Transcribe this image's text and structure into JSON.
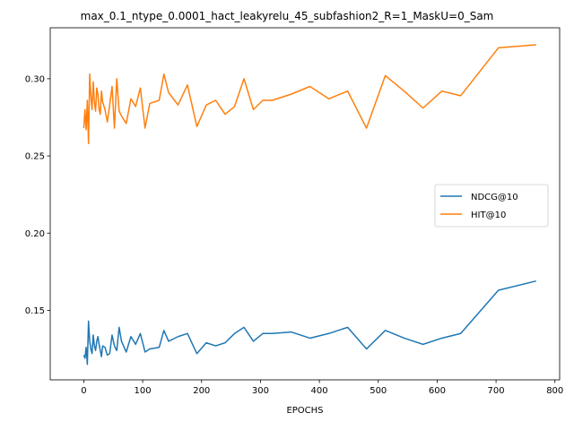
{
  "chart_data": {
    "type": "line",
    "title": "max_0.1_ntype_0.0001_hact_leakyrelu_45_subfashion2_R=1_MaskU=0_Sam",
    "xlabel": "EPOCHS",
    "ylabel": "",
    "xlim": [
      -57,
      808
    ],
    "ylim": [
      0.105,
      0.333
    ],
    "xticks": [
      0,
      100,
      200,
      300,
      400,
      500,
      600,
      700,
      800
    ],
    "yticks": [
      0.15,
      0.2,
      0.25,
      0.3
    ],
    "ytick_labels": [
      "0.15",
      "0.20",
      "0.25",
      "0.30"
    ],
    "grid": false,
    "legend_position": "center-right",
    "colors": {
      "NDCG@10": "#1f77b4",
      "HIT@10": "#ff7f0e"
    },
    "series": [
      {
        "name": "NDCG@10",
        "x": [
          0,
          2,
          4,
          6,
          8,
          10,
          12,
          14,
          16,
          18,
          20,
          22,
          24,
          26,
          28,
          30,
          32,
          36,
          40,
          44,
          48,
          52,
          56,
          60,
          64,
          72,
          80,
          88,
          96,
          104,
          112,
          128,
          136,
          144,
          160,
          176,
          192,
          208,
          224,
          240,
          256,
          272,
          288,
          304,
          320,
          352,
          384,
          416,
          448,
          480,
          512,
          544,
          576,
          608,
          640,
          704,
          768
        ],
        "y": [
          0.121,
          0.119,
          0.126,
          0.115,
          0.143,
          0.13,
          0.125,
          0.122,
          0.134,
          0.127,
          0.124,
          0.13,
          0.133,
          0.128,
          0.124,
          0.12,
          0.127,
          0.126,
          0.121,
          0.122,
          0.134,
          0.127,
          0.124,
          0.139,
          0.13,
          0.123,
          0.133,
          0.128,
          0.135,
          0.123,
          0.125,
          0.126,
          0.137,
          0.13,
          0.133,
          0.135,
          0.122,
          0.129,
          0.127,
          0.129,
          0.135,
          0.139,
          0.13,
          0.135,
          0.135,
          0.136,
          0.132,
          0.135,
          0.139,
          0.125,
          0.137,
          0.132,
          0.128,
          0.132,
          0.135,
          0.163,
          0.169
        ]
      },
      {
        "name": "HIT@10",
        "x": [
          0,
          2,
          4,
          6,
          8,
          10,
          12,
          14,
          16,
          18,
          20,
          22,
          24,
          26,
          28,
          30,
          32,
          36,
          40,
          44,
          48,
          52,
          56,
          60,
          64,
          72,
          80,
          88,
          96,
          104,
          112,
          128,
          136,
          144,
          160,
          176,
          192,
          208,
          224,
          240,
          256,
          272,
          288,
          304,
          320,
          352,
          384,
          416,
          448,
          480,
          512,
          544,
          576,
          608,
          640,
          704,
          768
        ],
        "y": [
          0.268,
          0.28,
          0.267,
          0.286,
          0.258,
          0.303,
          0.289,
          0.28,
          0.298,
          0.285,
          0.279,
          0.294,
          0.29,
          0.28,
          0.277,
          0.292,
          0.285,
          0.28,
          0.272,
          0.283,
          0.295,
          0.268,
          0.3,
          0.279,
          0.276,
          0.271,
          0.287,
          0.282,
          0.294,
          0.268,
          0.284,
          0.286,
          0.303,
          0.291,
          0.283,
          0.296,
          0.269,
          0.283,
          0.286,
          0.277,
          0.282,
          0.3,
          0.28,
          0.286,
          0.286,
          0.29,
          0.295,
          0.287,
          0.292,
          0.268,
          0.302,
          0.292,
          0.281,
          0.292,
          0.289,
          0.32,
          0.322
        ]
      }
    ]
  }
}
